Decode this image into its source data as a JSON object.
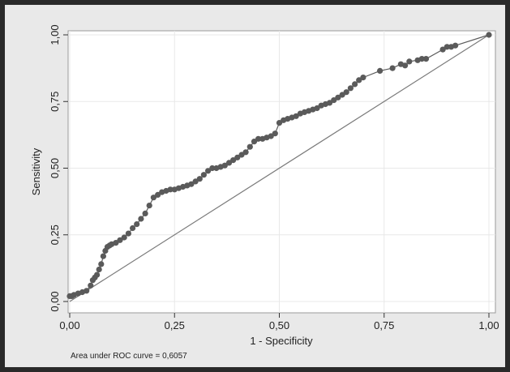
{
  "chart_data": {
    "type": "scatter",
    "xlabel": "1 - Specificity",
    "ylabel": "Sensitivity",
    "xlim": [
      0,
      1
    ],
    "ylim": [
      0,
      1
    ],
    "grid": true,
    "x_ticks": [
      "0,00",
      "0,25",
      "0,50",
      "0,75",
      "1,00"
    ],
    "y_ticks": [
      "0,00",
      "0,25",
      "0,50",
      "0,75",
      "1,00"
    ],
    "tick_values": [
      0,
      0.25,
      0.5,
      0.75,
      1
    ],
    "annotation": "Area under ROC curve = 0,6057",
    "colors": {
      "points": "#5a5a5a",
      "curve": "#5a5a5a",
      "reference_line": "#7a7a7a",
      "plot_background": "#ffffff",
      "figure_background": "#e9e9e9",
      "grid": "#e8e8e8"
    },
    "reference_line": {
      "x": [
        0,
        1
      ],
      "y": [
        0,
        1
      ]
    },
    "series": [
      {
        "x": [
          0,
          0.005,
          0.01,
          0.02,
          0.03,
          0.04,
          0.05,
          0.055,
          0.06,
          0.065,
          0.07,
          0.075,
          0.08,
          0.085,
          0.09,
          0.095,
          0.1,
          0.11,
          0.12,
          0.13,
          0.14,
          0.15,
          0.16,
          0.17,
          0.18,
          0.19,
          0.2,
          0.21,
          0.22,
          0.23,
          0.24,
          0.25,
          0.26,
          0.27,
          0.28,
          0.29,
          0.3,
          0.31,
          0.32,
          0.33,
          0.34,
          0.35,
          0.36,
          0.37,
          0.38,
          0.39,
          0.4,
          0.41,
          0.42,
          0.43,
          0.44,
          0.45,
          0.46,
          0.47,
          0.48,
          0.49,
          0.5,
          0.51,
          0.52,
          0.53,
          0.54,
          0.55,
          0.56,
          0.57,
          0.58,
          0.59,
          0.6,
          0.61,
          0.62,
          0.63,
          0.64,
          0.65,
          0.66,
          0.67,
          0.68,
          0.69,
          0.7,
          0.74,
          0.77,
          0.79,
          0.8,
          0.81,
          0.83,
          0.84,
          0.85,
          0.89,
          0.9,
          0.91,
          0.92,
          1.0
        ],
        "y": [
          0.02,
          0.02,
          0.025,
          0.03,
          0.035,
          0.04,
          0.06,
          0.08,
          0.09,
          0.1,
          0.12,
          0.14,
          0.17,
          0.19,
          0.205,
          0.21,
          0.215,
          0.22,
          0.23,
          0.24,
          0.255,
          0.275,
          0.29,
          0.31,
          0.33,
          0.36,
          0.39,
          0.4,
          0.41,
          0.415,
          0.42,
          0.42,
          0.425,
          0.43,
          0.435,
          0.44,
          0.45,
          0.46,
          0.475,
          0.49,
          0.5,
          0.5,
          0.505,
          0.51,
          0.52,
          0.53,
          0.54,
          0.55,
          0.56,
          0.58,
          0.6,
          0.61,
          0.61,
          0.615,
          0.62,
          0.63,
          0.67,
          0.68,
          0.685,
          0.69,
          0.695,
          0.705,
          0.71,
          0.715,
          0.72,
          0.725,
          0.735,
          0.74,
          0.745,
          0.755,
          0.765,
          0.775,
          0.785,
          0.8,
          0.815,
          0.83,
          0.84,
          0.865,
          0.875,
          0.89,
          0.885,
          0.9,
          0.905,
          0.91,
          0.91,
          0.945,
          0.955,
          0.955,
          0.96,
          1.0
        ]
      }
    ]
  }
}
